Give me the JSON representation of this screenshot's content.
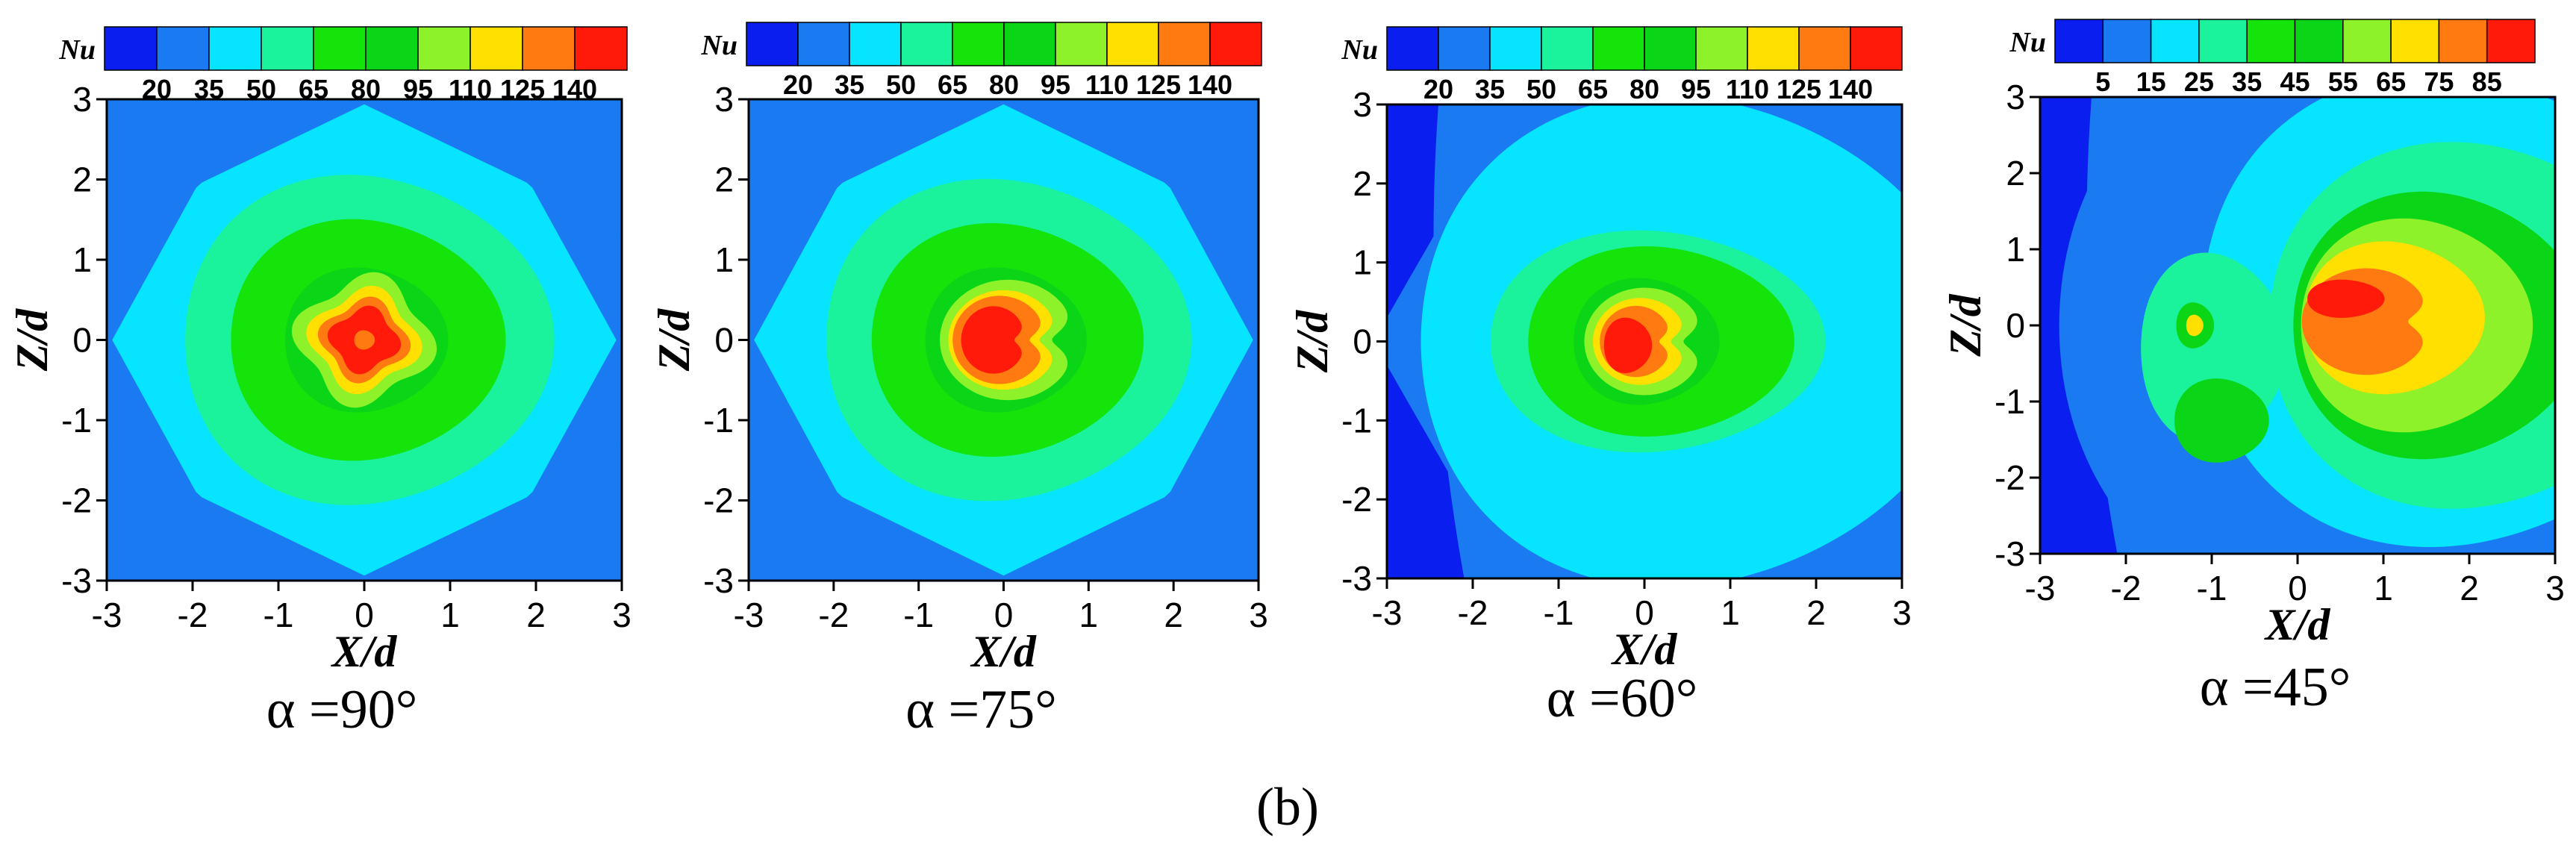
{
  "figure_label": "(b)",
  "chart_data": [
    {
      "type": "contour",
      "title": "α =90°",
      "xlabel": "X/d",
      "ylabel": "Z/d",
      "xlim": [
        -3,
        3
      ],
      "ylim": [
        -3,
        3
      ],
      "xticks": [
        -3,
        -2,
        -1,
        0,
        1,
        2,
        3
      ],
      "yticks": [
        -3,
        -2,
        -1,
        0,
        1,
        2,
        3
      ],
      "colorbar": {
        "title": "Nu",
        "tick_labels": [
          "20",
          "35",
          "50",
          "65",
          "80",
          "95",
          "110",
          "125",
          "140"
        ],
        "colors": [
          "#0a1ef0",
          "#1a7af2",
          "#06e4ff",
          "#1af29c",
          "#14e40a",
          "#0ad617",
          "#8ef22a",
          "#ffe000",
          "#ff7a10",
          "#ff1a0a"
        ]
      },
      "levels": [
        {
          "level": 1,
          "cx": 0,
          "cz": 0,
          "rx": 4.1,
          "rz": 4.1,
          "shape": "diamond"
        },
        {
          "level": 2,
          "cx": 0,
          "cz": 0,
          "rx": 3.3,
          "rz": 3.3,
          "shape": "diamond"
        },
        {
          "level": 3,
          "cx": 0,
          "cz": 0,
          "rx": 2.15,
          "rz": 2.05,
          "shape": "round"
        },
        {
          "level": 4,
          "cx": 0,
          "cz": 0,
          "rx": 1.6,
          "rz": 1.5,
          "shape": "round"
        },
        {
          "level": 5,
          "cx": 0,
          "cz": 0,
          "rx": 0.95,
          "rz": 0.9,
          "shape": "round"
        },
        {
          "level": 6,
          "cx": 0,
          "cz": 0,
          "rx": 0.75,
          "rz": 0.75,
          "shape": "clover"
        },
        {
          "level": 7,
          "cx": 0,
          "cz": 0,
          "rx": 0.6,
          "rz": 0.6,
          "shape": "clover"
        },
        {
          "level": 8,
          "cx": 0,
          "cz": 0,
          "rx": 0.48,
          "rz": 0.48,
          "shape": "clover"
        },
        {
          "level": 9,
          "cx": 0,
          "cz": 0,
          "rx": 0.38,
          "rz": 0.38,
          "shape": "clover"
        },
        {
          "level": 8,
          "cx": 0,
          "cz": 0,
          "rx": 0.12,
          "rz": 0.12,
          "shape": "round"
        }
      ]
    },
    {
      "type": "contour",
      "title": "α =75°",
      "xlabel": "X/d",
      "ylabel": "Z/d",
      "xlim": [
        -3,
        3
      ],
      "ylim": [
        -3,
        3
      ],
      "xticks": [
        -3,
        -2,
        -1,
        0,
        1,
        2,
        3
      ],
      "yticks": [
        -3,
        -2,
        -1,
        0,
        1,
        2,
        3
      ],
      "colorbar": {
        "title": "Nu",
        "tick_labels": [
          "20",
          "35",
          "50",
          "65",
          "80",
          "95",
          "110",
          "125",
          "140"
        ],
        "colors": [
          "#0a1ef0",
          "#1a7af2",
          "#06e4ff",
          "#1af29c",
          "#14e40a",
          "#0ad617",
          "#8ef22a",
          "#ffe000",
          "#ff7a10",
          "#ff1a0a"
        ]
      },
      "levels": [
        {
          "level": 1,
          "cx": 0,
          "cz": 0,
          "rx": 4.1,
          "rz": 4.1,
          "shape": "diamond"
        },
        {
          "level": 2,
          "cx": 0,
          "cz": 0,
          "rx": 3.3,
          "rz": 3.3,
          "shape": "diamond"
        },
        {
          "level": 3,
          "cx": 0,
          "cz": 0,
          "rx": 2.15,
          "rz": 2.0,
          "shape": "round"
        },
        {
          "level": 4,
          "cx": 0,
          "cz": 0,
          "rx": 1.6,
          "rz": 1.45,
          "shape": "round"
        },
        {
          "level": 5,
          "cx": 0,
          "cz": 0,
          "rx": 0.95,
          "rz": 0.9,
          "shape": "round"
        },
        {
          "level": 6,
          "cx": 0.05,
          "cz": 0,
          "rx": 0.8,
          "rz": 0.75,
          "shape": "notch"
        },
        {
          "level": 7,
          "cx": 0,
          "cz": 0,
          "rx": 0.65,
          "rz": 0.62,
          "shape": "notch"
        },
        {
          "level": 8,
          "cx": -0.05,
          "cz": 0,
          "rx": 0.55,
          "rz": 0.55,
          "shape": "notch"
        },
        {
          "level": 9,
          "cx": -0.12,
          "cz": 0,
          "rx": 0.38,
          "rz": 0.42,
          "shape": "notch"
        }
      ]
    },
    {
      "type": "contour",
      "title": "α =60°",
      "xlabel": "X/d",
      "ylabel": "Z/d",
      "xlim": [
        -3,
        3
      ],
      "ylim": [
        -3,
        3
      ],
      "xticks": [
        -3,
        -2,
        -1,
        0,
        1,
        2,
        3
      ],
      "yticks": [
        -3,
        -2,
        -1,
        0,
        1,
        2,
        3
      ],
      "colorbar": {
        "title": "Nu",
        "tick_labels": [
          "20",
          "35",
          "50",
          "65",
          "80",
          "95",
          "110",
          "125",
          "140"
        ],
        "colors": [
          "#0a1ef0",
          "#1a7af2",
          "#06e4ff",
          "#1af29c",
          "#14e40a",
          "#0ad617",
          "#8ef22a",
          "#ffe000",
          "#ff7a10",
          "#ff1a0a"
        ]
      },
      "levels": [
        {
          "level": 1,
          "cx": 0.4,
          "cz": 0,
          "rx": 4.0,
          "rz": 3.9,
          "shape": "diamond"
        },
        {
          "level": 2,
          "cx": 0.5,
          "cz": 0,
          "rx": 3.2,
          "rz": 3.1,
          "shape": "round"
        },
        {
          "level": 3,
          "cx": 0.1,
          "cz": 0,
          "rx": 1.95,
          "rz": 1.4,
          "shape": "round"
        },
        {
          "level": 4,
          "cx": 0.15,
          "cz": 0,
          "rx": 1.55,
          "rz": 1.2,
          "shape": "round"
        },
        {
          "level": 5,
          "cx": 0,
          "cz": 0,
          "rx": 0.85,
          "rz": 0.8,
          "shape": "round"
        },
        {
          "level": 6,
          "cx": 0,
          "cz": 0,
          "rx": 0.7,
          "rz": 0.68,
          "shape": "notch"
        },
        {
          "level": 7,
          "cx": -0.05,
          "cz": 0,
          "rx": 0.55,
          "rz": 0.55,
          "shape": "notch"
        },
        {
          "level": 8,
          "cx": -0.1,
          "cz": 0,
          "rx": 0.42,
          "rz": 0.45,
          "shape": "notch"
        },
        {
          "level": 9,
          "cx": -0.2,
          "cz": -0.05,
          "rx": 0.28,
          "rz": 0.35,
          "shape": "round"
        }
      ]
    },
    {
      "type": "contour",
      "title": "α =45°",
      "xlabel": "X/d",
      "ylabel": "Z/d",
      "xlim": [
        -3,
        3
      ],
      "ylim": [
        -3,
        3
      ],
      "xticks": [
        -3,
        -2,
        -1,
        0,
        1,
        2,
        3
      ],
      "yticks": [
        -3,
        -2,
        -1,
        0,
        1,
        2,
        3
      ],
      "colorbar": {
        "title": "Nu",
        "tick_labels": [
          "5",
          "15",
          "25",
          "35",
          "45",
          "55",
          "65",
          "75",
          "85"
        ],
        "colors": [
          "#0a1ef0",
          "#1a7af2",
          "#06e4ff",
          "#1af29c",
          "#14e40a",
          "#0ad617",
          "#8ef22a",
          "#ffe000",
          "#ff7a10",
          "#ff1a0a"
        ]
      },
      "levels": [
        {
          "level": 1,
          "cx": 1.2,
          "cz": 0,
          "rx": 4.1,
          "rz": 4.0,
          "shape": "round"
        },
        {
          "level": 2,
          "cx": 1.8,
          "cz": 0.2,
          "rx": 3.0,
          "rz": 3.1,
          "shape": "round"
        },
        {
          "level": 3,
          "cx": 2.0,
          "cz": 0,
          "rx": 2.4,
          "rz": 2.4,
          "shape": "round"
        },
        {
          "level": 5,
          "cx": 1.6,
          "cz": 0,
          "rx": 1.7,
          "rz": 1.75,
          "shape": "round"
        },
        {
          "level": 6,
          "cx": 1.35,
          "cz": 0,
          "rx": 1.35,
          "rz": 1.4,
          "shape": "round"
        },
        {
          "level": 7,
          "cx": 1.1,
          "cz": 0.1,
          "rx": 1.05,
          "rz": 1.0,
          "shape": "round"
        },
        {
          "level": 8,
          "cx": 0.8,
          "cz": 0.05,
          "rx": 0.75,
          "rz": 0.7,
          "shape": "notch"
        },
        {
          "level": 9,
          "cx": 0.55,
          "cz": 0.35,
          "rx": 0.45,
          "rz": 0.25,
          "shape": "round"
        },
        {
          "level": 3,
          "cx": -1.0,
          "cz": -0.3,
          "rx": 0.85,
          "rz": 1.25,
          "shape": "round"
        },
        {
          "level": 5,
          "cx": -0.9,
          "cz": -1.25,
          "rx": 0.55,
          "rz": 0.55,
          "shape": "round"
        },
        {
          "level": 5,
          "cx": -1.2,
          "cz": 0.0,
          "rx": 0.22,
          "rz": 0.3,
          "shape": "round"
        },
        {
          "level": 7,
          "cx": -1.2,
          "cz": 0.0,
          "rx": 0.1,
          "rz": 0.14,
          "shape": "round"
        }
      ]
    }
  ]
}
